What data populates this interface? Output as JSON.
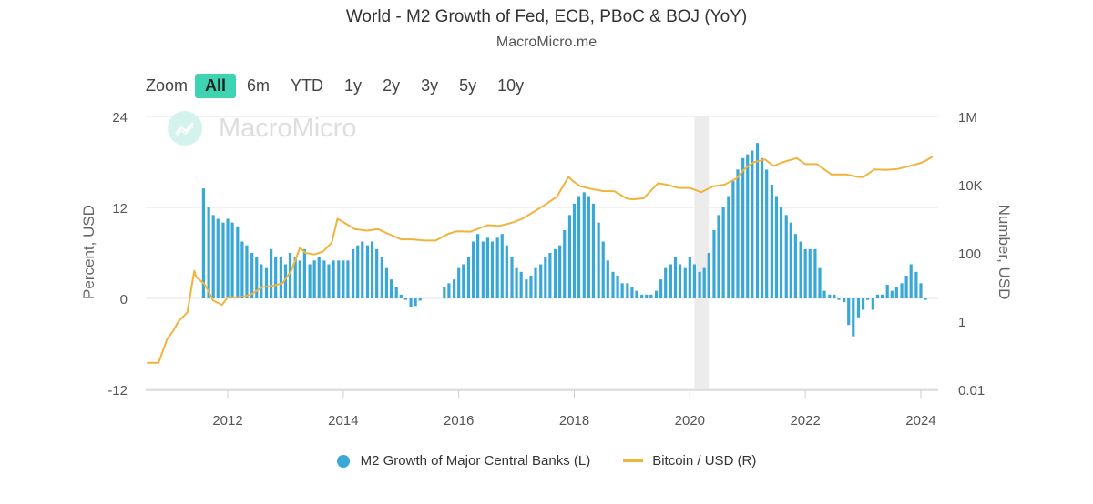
{
  "title": "World - M2 Growth of Fed, ECB, PBoC & BOJ (YoY)",
  "subtitle": "MacroMicro.me",
  "watermark": "MacroMicro",
  "zoom": {
    "label": "Zoom",
    "options": [
      "All",
      "6m",
      "YTD",
      "1y",
      "2y",
      "3y",
      "5y",
      "10y"
    ],
    "active": "All"
  },
  "colors": {
    "bar": "#3aa8d6",
    "line": "#f0b43c",
    "recession": "#ececec",
    "accent": "#3ed3b1"
  },
  "chart_data": {
    "type": "bar+line",
    "left_axis": {
      "label": "Percent, USD",
      "ticks": [
        "24",
        "12",
        "0",
        "-12"
      ],
      "range": [
        -12,
        24
      ]
    },
    "right_axis": {
      "label": "Number, USD",
      "scale": "log",
      "ticks": [
        "1M",
        "10K",
        "100",
        "1",
        "0.01"
      ],
      "range": [
        0.01,
        1000000
      ]
    },
    "x_axis": {
      "ticks": [
        "2012",
        "2014",
        "2016",
        "2018",
        "2020",
        "2022",
        "2024"
      ]
    },
    "grid": "horizontal",
    "legend_position": "bottom",
    "shaded_periods": [
      {
        "start": 2020.08,
        "end": 2020.33
      }
    ],
    "series": [
      {
        "name": "M2 Growth of Major Central Banks (L)",
        "type": "bar",
        "axis": "left",
        "x": [
          2011.58,
          2011.67,
          2011.75,
          2011.83,
          2011.92,
          2012.0,
          2012.08,
          2012.17,
          2012.25,
          2012.33,
          2012.42,
          2012.5,
          2012.58,
          2012.67,
          2012.75,
          2012.83,
          2012.92,
          2013.0,
          2013.08,
          2013.17,
          2013.25,
          2013.33,
          2013.42,
          2013.5,
          2013.58,
          2013.67,
          2013.75,
          2013.83,
          2013.92,
          2014.0,
          2014.08,
          2014.17,
          2014.25,
          2014.33,
          2014.42,
          2014.5,
          2014.58,
          2014.67,
          2014.75,
          2014.83,
          2014.92,
          2015.0,
          2015.08,
          2015.17,
          2015.25,
          2015.33,
          2015.42,
          2015.5,
          2015.58,
          2015.67,
          2015.75,
          2015.83,
          2015.92,
          2016.0,
          2016.08,
          2016.17,
          2016.25,
          2016.33,
          2016.42,
          2016.5,
          2016.58,
          2016.67,
          2016.75,
          2016.83,
          2016.92,
          2017.0,
          2017.08,
          2017.17,
          2017.25,
          2017.33,
          2017.42,
          2017.5,
          2017.58,
          2017.67,
          2017.75,
          2017.83,
          2017.92,
          2018.0,
          2018.08,
          2018.17,
          2018.25,
          2018.33,
          2018.42,
          2018.5,
          2018.58,
          2018.67,
          2018.75,
          2018.83,
          2018.92,
          2019.0,
          2019.08,
          2019.17,
          2019.25,
          2019.33,
          2019.42,
          2019.5,
          2019.58,
          2019.67,
          2019.75,
          2019.83,
          2019.92,
          2020.0,
          2020.08,
          2020.17,
          2020.25,
          2020.33,
          2020.42,
          2020.5,
          2020.58,
          2020.67,
          2020.75,
          2020.83,
          2020.92,
          2021.0,
          2021.08,
          2021.17,
          2021.25,
          2021.33,
          2021.42,
          2021.5,
          2021.58,
          2021.67,
          2021.75,
          2021.83,
          2021.92,
          2022.0,
          2022.08,
          2022.17,
          2022.25,
          2022.33,
          2022.42,
          2022.5,
          2022.58,
          2022.67,
          2022.75,
          2022.83,
          2022.92,
          2023.0,
          2023.08,
          2023.17,
          2023.25,
          2023.33,
          2023.42,
          2023.5,
          2023.58,
          2023.67,
          2023.75,
          2023.83,
          2023.92,
          2024.0,
          2024.08
        ],
        "values": [
          14.5,
          12.0,
          11.0,
          10.5,
          10.0,
          10.5,
          10.0,
          9.5,
          7.5,
          7.0,
          6.0,
          5.5,
          4.5,
          4.0,
          6.5,
          5.5,
          5.5,
          4.5,
          6.0,
          5.5,
          5.0,
          6.5,
          4.5,
          5.0,
          5.5,
          5.0,
          4.5,
          5.0,
          5.0,
          5.0,
          5.0,
          6.5,
          7.0,
          7.5,
          7.0,
          7.5,
          6.5,
          5.5,
          4.0,
          2.5,
          1.5,
          0.5,
          -0.2,
          -1.2,
          -1.0,
          -0.3,
          0,
          0,
          0,
          0,
          1.5,
          2.0,
          2.5,
          4.0,
          4.5,
          5.5,
          7.5,
          8.5,
          7.5,
          8.0,
          7.5,
          8.0,
          8.5,
          7.0,
          5.5,
          4.0,
          3.5,
          2.5,
          3.0,
          4.0,
          4.5,
          5.5,
          6.0,
          6.5,
          7.0,
          9.0,
          11.0,
          12.5,
          13.5,
          14.0,
          13.5,
          12.5,
          10.0,
          7.5,
          5.0,
          3.5,
          3.0,
          2.0,
          2.0,
          1.5,
          1.0,
          0.5,
          0.5,
          0.5,
          1.0,
          2.5,
          4.0,
          4.5,
          5.5,
          4.5,
          4.0,
          5.5,
          4.5,
          3.5,
          4.0,
          6.0,
          9.0,
          11.0,
          12.0,
          13.5,
          15.5,
          17.0,
          18.5,
          19.0,
          19.5,
          20.5,
          18.5,
          17.0,
          15.0,
          13.5,
          12.0,
          11.0,
          10.0,
          8.5,
          7.5,
          6.5,
          6.5,
          6.5,
          4.0,
          1.0,
          0.5,
          0.5,
          -0.2,
          -0.5,
          -3.5,
          -5.0,
          -2.5,
          -1.5,
          -0.2,
          -1.5,
          0.5,
          0.5,
          1.8,
          1.0,
          1.5,
          2.0,
          3.0,
          4.5,
          3.5,
          2.0,
          -0.2
        ],
        "color": "#3aa8d6"
      },
      {
        "name": "Bitcoin / USD (R)",
        "type": "line",
        "axis": "right",
        "x": [
          2010.6,
          2010.8,
          2010.95,
          2011.05,
          2011.15,
          2011.3,
          2011.42,
          2011.45,
          2011.6,
          2011.75,
          2011.9,
          2012.0,
          2012.2,
          2012.4,
          2012.6,
          2012.8,
          2012.95,
          2013.1,
          2013.25,
          2013.35,
          2013.5,
          2013.65,
          2013.8,
          2013.9,
          2014.0,
          2014.2,
          2014.4,
          2014.6,
          2014.8,
          2015.0,
          2015.2,
          2015.4,
          2015.6,
          2015.8,
          2015.95,
          2016.2,
          2016.5,
          2016.7,
          2016.9,
          2017.1,
          2017.3,
          2017.5,
          2017.7,
          2017.9,
          2017.97,
          2018.1,
          2018.3,
          2018.5,
          2018.7,
          2018.9,
          2019.0,
          2019.2,
          2019.45,
          2019.6,
          2019.8,
          2020.0,
          2020.2,
          2020.4,
          2020.6,
          2020.8,
          2020.95,
          2021.1,
          2021.3,
          2021.45,
          2021.6,
          2021.85,
          2022.0,
          2022.2,
          2022.45,
          2022.7,
          2022.9,
          2023.0,
          2023.2,
          2023.4,
          2023.6,
          2023.8,
          2024.0,
          2024.1,
          2024.2
        ],
        "values": [
          0.06,
          0.06,
          0.3,
          0.5,
          1.0,
          1.8,
          30,
          20,
          12,
          4,
          3,
          5,
          5,
          6,
          10,
          11,
          13,
          30,
          140,
          100,
          90,
          110,
          200,
          1000,
          800,
          500,
          450,
          500,
          350,
          250,
          250,
          230,
          230,
          350,
          430,
          420,
          650,
          620,
          750,
          1000,
          1600,
          2600,
          4500,
          17000,
          13000,
          9000,
          7500,
          6500,
          6400,
          4000,
          3700,
          4000,
          11000,
          10000,
          8000,
          8000,
          6000,
          9000,
          10000,
          15000,
          29000,
          45000,
          55000,
          35000,
          45000,
          60000,
          40000,
          40000,
          20000,
          20000,
          17000,
          16500,
          28000,
          27000,
          29000,
          35000,
          43000,
          52000,
          67000
        ],
        "color": "#f0b43c"
      }
    ]
  },
  "legend": {
    "bar_label": "M2 Growth of Major Central Banks (L)",
    "line_label": "Bitcoin / USD (R)"
  }
}
